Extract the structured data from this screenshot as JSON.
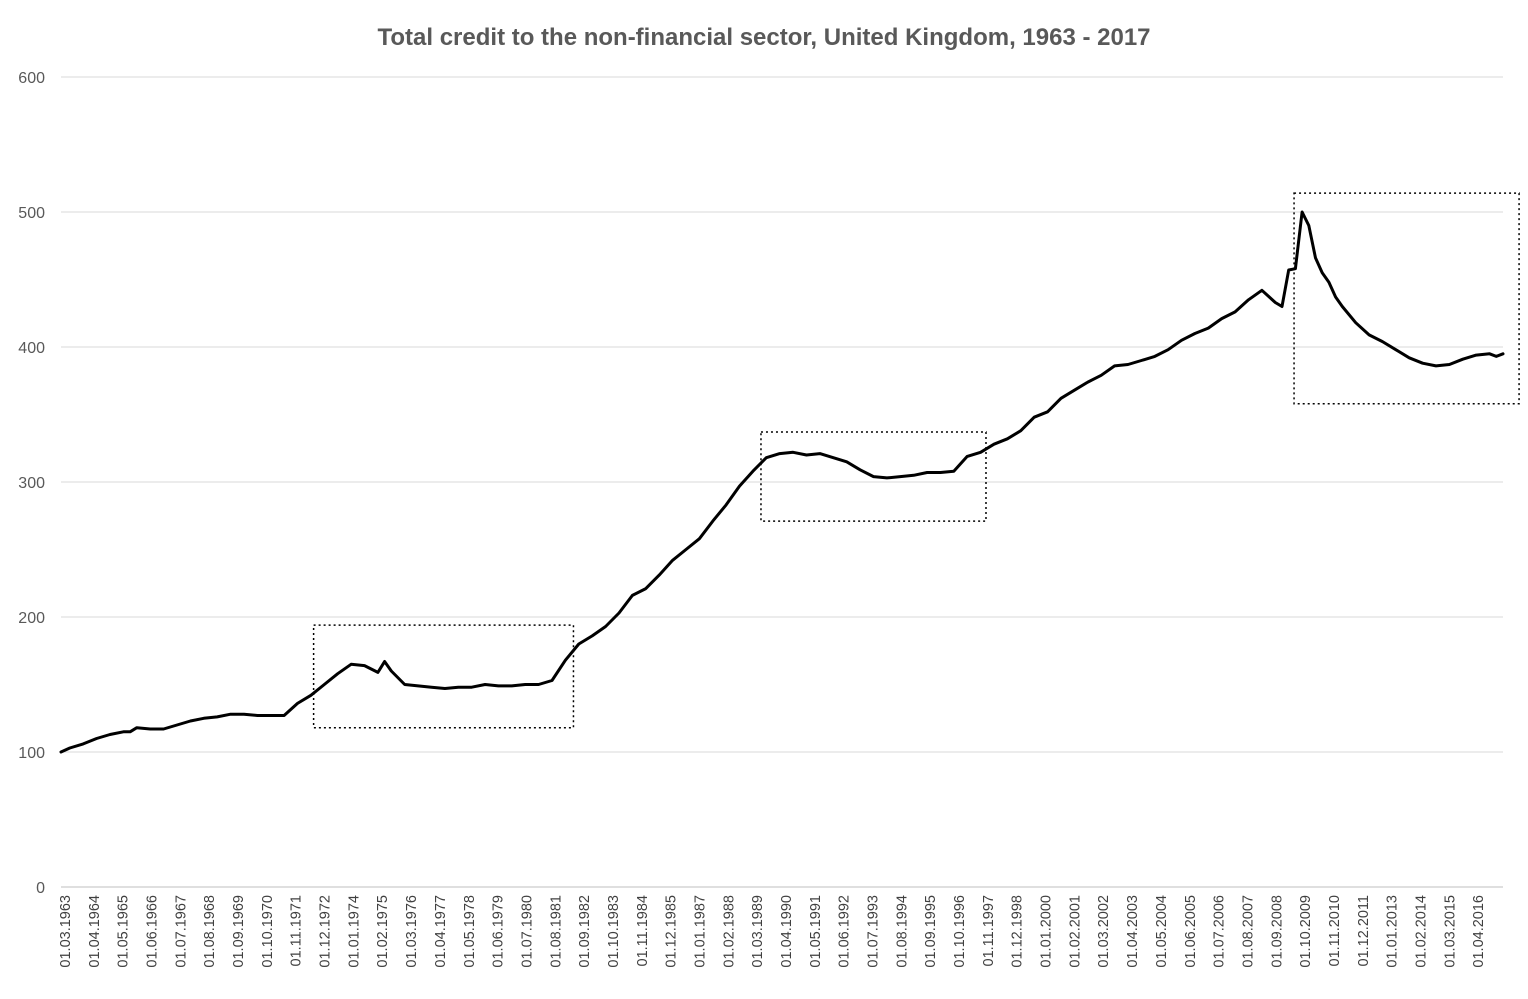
{
  "chart_data": {
    "type": "line",
    "title": "Total credit to the non-financial sector, United Kingdom, 1963 - 2017",
    "xlabel": "",
    "ylabel": "",
    "ylim": [
      0,
      600
    ],
    "yticks": [
      0,
      100,
      200,
      300,
      400,
      500,
      600
    ],
    "grid": true,
    "x_tick_labels": [
      "01.03.1963",
      "01.04.1964",
      "01.05.1965",
      "01.06.1966",
      "01.07.1967",
      "01.08.1968",
      "01.09.1969",
      "01.10.1970",
      "01.11.1971",
      "01.12.1972",
      "01.01.1974",
      "01.02.1975",
      "01.03.1976",
      "01.04.1977",
      "01.05.1978",
      "01.06.1979",
      "01.07.1980",
      "01.08.1981",
      "01.09.1982",
      "01.10.1983",
      "01.11.1984",
      "01.12.1985",
      "01.01.1987",
      "01.02.1988",
      "01.03.1989",
      "01.04.1990",
      "01.05.1991",
      "01.06.1992",
      "01.07.1993",
      "01.08.1994",
      "01.09.1995",
      "01.10.1996",
      "01.11.1997",
      "01.12.1998",
      "01.01.2000",
      "01.02.2001",
      "01.03.2002",
      "01.04.2003",
      "01.05.2004",
      "01.06.2005",
      "01.07.2006",
      "01.08.2007",
      "01.09.2008",
      "01.10.2009",
      "01.11.2010",
      "01.12.2011",
      "01.01.2013",
      "01.02.2014",
      "01.03.2015",
      "01.04.2016"
    ],
    "series": [
      {
        "x": [
          1963.17,
          1963.5,
          1964.0,
          1964.5,
          1965.0,
          1965.5,
          1965.75,
          1966.0,
          1966.5,
          1967.0,
          1967.5,
          1968.0,
          1968.5,
          1969.0,
          1969.5,
          1970.0,
          1970.5,
          1971.0,
          1971.5,
          1972.0,
          1972.5,
          1973.0,
          1973.5,
          1974.0,
          1974.5,
          1975.0,
          1975.25,
          1975.5,
          1976.0,
          1976.5,
          1977.0,
          1977.5,
          1978.0,
          1978.5,
          1979.0,
          1979.5,
          1980.0,
          1980.5,
          1981.0,
          1981.5,
          1982.0,
          1982.5,
          1983.0,
          1983.5,
          1984.0,
          1984.5,
          1985.0,
          1985.5,
          1986.0,
          1986.5,
          1987.0,
          1987.5,
          1988.0,
          1988.5,
          1989.0,
          1989.5,
          1990.0,
          1990.5,
          1991.0,
          1991.5,
          1992.0,
          1992.5,
          1993.0,
          1993.5,
          1994.0,
          1994.5,
          1995.0,
          1995.5,
          1996.0,
          1996.5,
          1997.0,
          1997.5,
          1998.0,
          1998.5,
          1999.0,
          1999.5,
          2000.0,
          2000.5,
          2001.0,
          2001.5,
          2002.0,
          2002.5,
          2003.0,
          2003.5,
          2004.0,
          2004.5,
          2005.0,
          2005.5,
          2006.0,
          2006.5,
          2007.0,
          2007.5,
          2008.0,
          2008.5,
          2008.75,
          2009.0,
          2009.25,
          2009.5,
          2009.75,
          2010.0,
          2010.25,
          2010.5,
          2010.75,
          2011.0,
          2011.5,
          2012.0,
          2012.5,
          2013.0,
          2013.5,
          2014.0,
          2014.5,
          2015.0,
          2015.5,
          2016.0,
          2016.5,
          2016.75,
          2017.0
        ],
        "values": [
          100,
          103,
          106,
          110,
          113,
          115,
          115,
          118,
          117,
          117,
          120,
          123,
          125,
          126,
          128,
          128,
          127,
          127,
          127,
          136,
          142,
          150,
          158,
          165,
          164,
          159,
          167,
          160,
          150,
          149,
          148,
          147,
          148,
          148,
          150,
          149,
          149,
          150,
          150,
          153,
          168,
          180,
          186,
          193,
          203,
          216,
          221,
          231,
          242,
          250,
          258,
          271,
          283,
          297,
          308,
          318,
          321,
          322,
          320,
          321,
          318,
          315,
          309,
          304,
          303,
          304,
          305,
          307,
          307,
          308,
          319,
          322,
          328,
          332,
          338,
          348,
          352,
          362,
          368,
          374,
          379,
          386,
          387,
          390,
          393,
          398,
          405,
          410,
          414,
          421,
          426,
          435,
          442,
          433,
          430,
          457,
          458,
          500,
          490,
          466,
          455,
          448,
          437,
          430,
          418,
          409,
          404,
          398,
          392,
          388,
          386,
          387,
          391,
          394,
          395,
          393,
          395
        ]
      }
    ],
    "highlight_boxes": [
      {
        "x_start": 1972.6,
        "x_end": 1982.3,
        "y_low": 118,
        "y_high": 194
      },
      {
        "x_start": 1989.3,
        "x_end": 1997.7,
        "y_low": 271,
        "y_high": 337
      },
      {
        "x_start": 2009.2,
        "x_end": 2017.6,
        "y_low": 358,
        "y_high": 514
      }
    ]
  }
}
